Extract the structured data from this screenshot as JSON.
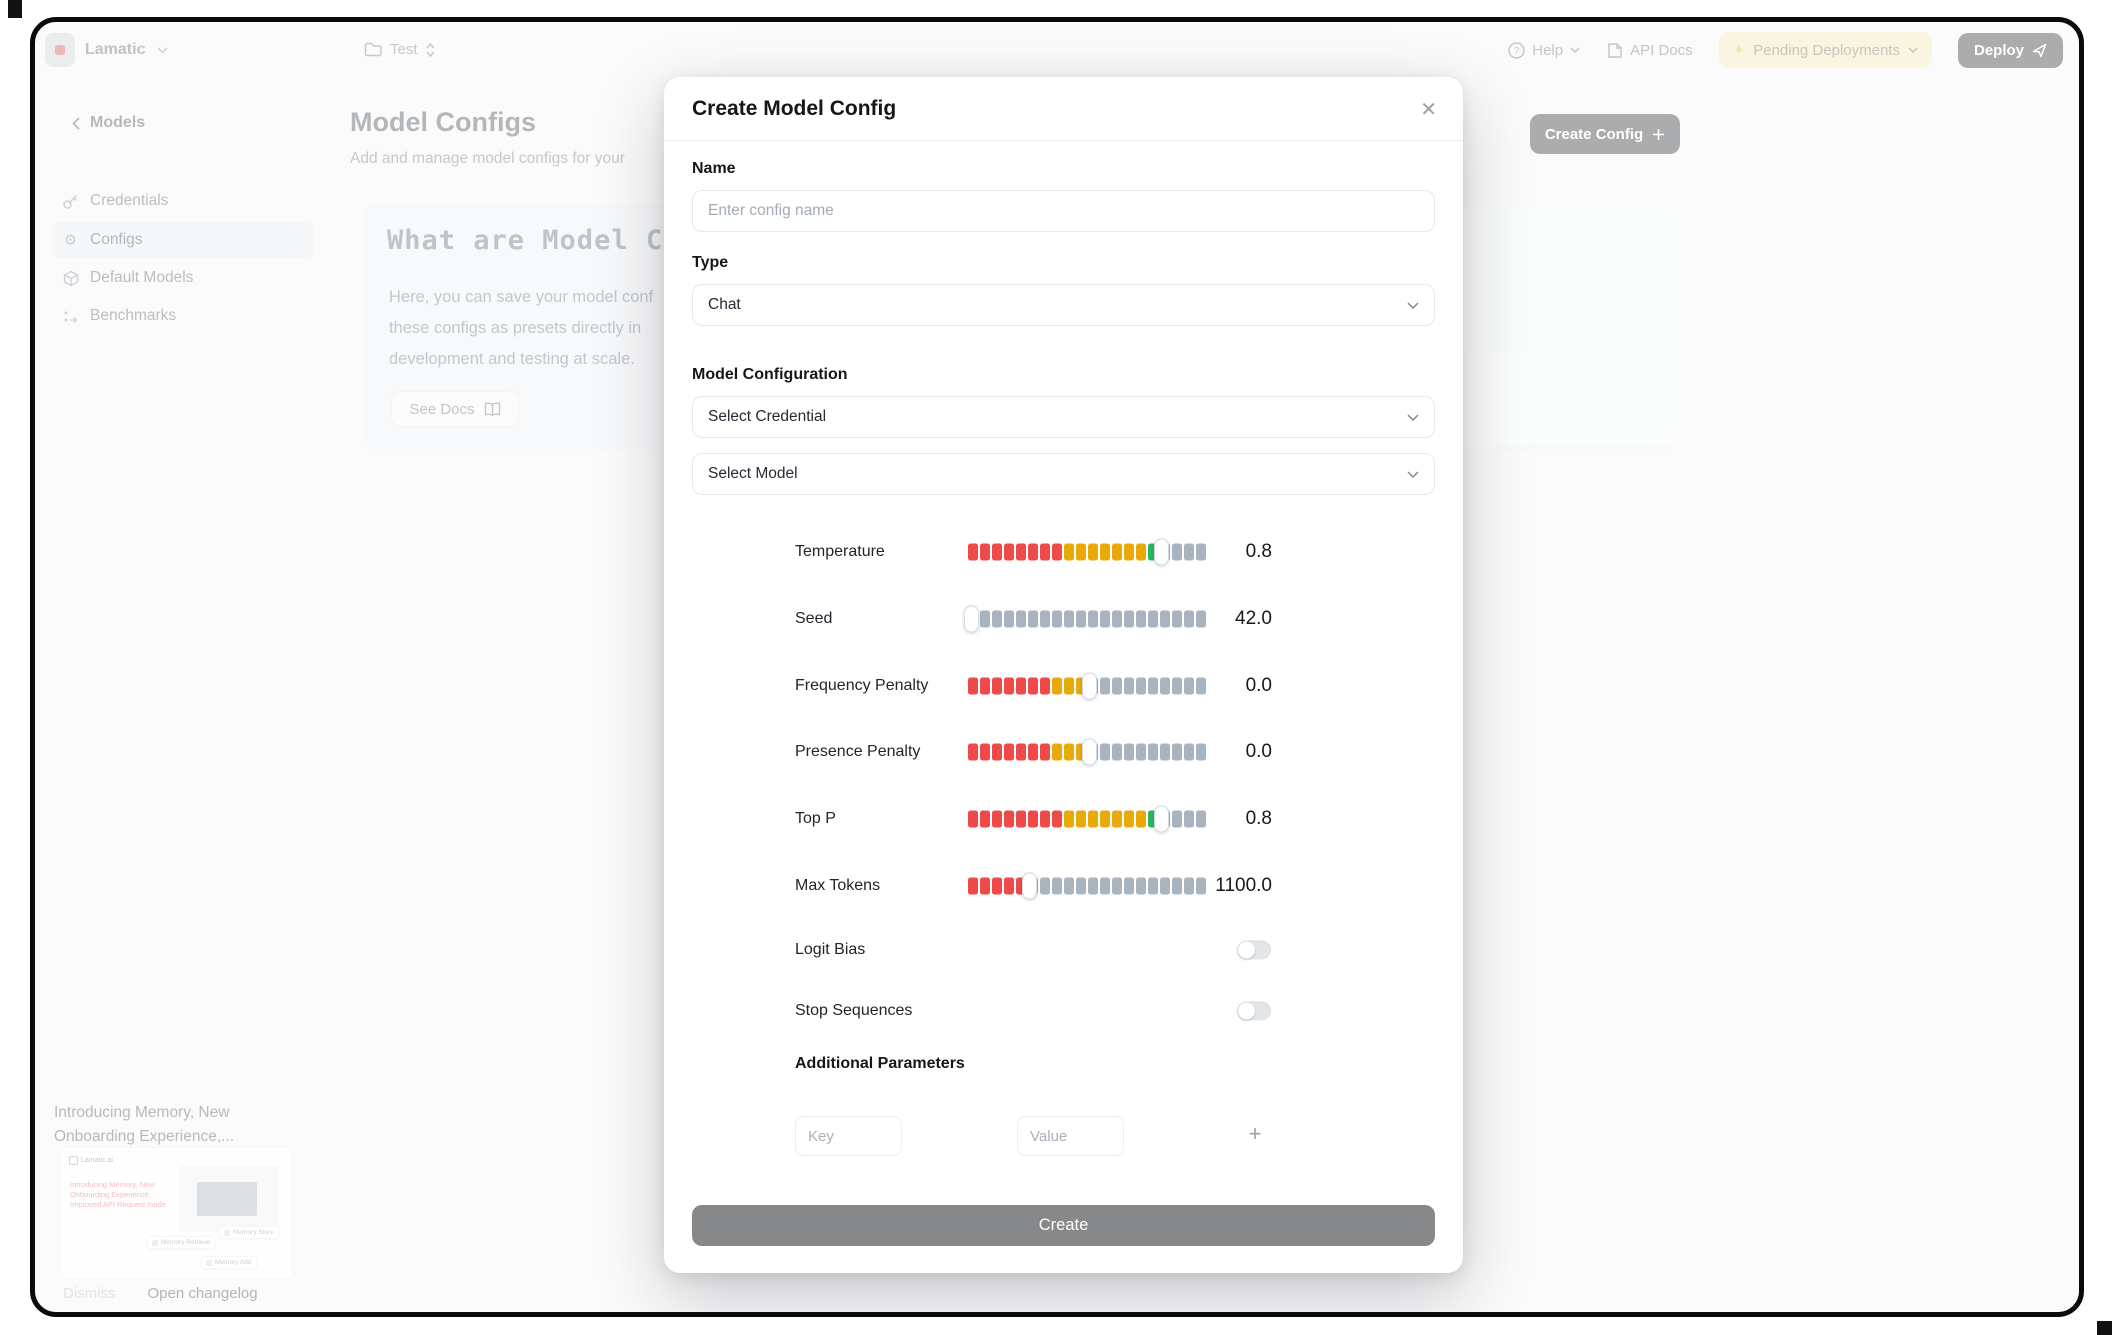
{
  "topbar": {
    "brand": "Lamatic",
    "project": "Test",
    "help_label": "Help",
    "api_docs_label": "API Docs",
    "pending_label": "Pending Deployments",
    "deploy_label": "Deploy"
  },
  "sidebar": {
    "back_label": "Models",
    "items": [
      {
        "label": "Credentials",
        "icon": "key-icon",
        "active": false
      },
      {
        "label": "Configs",
        "icon": "gear-icon",
        "active": true
      },
      {
        "label": "Default Models",
        "icon": "cube-icon",
        "active": false
      },
      {
        "label": "Benchmarks",
        "icon": "benchmark-icon",
        "active": false
      }
    ]
  },
  "main": {
    "title": "Model Configs",
    "subtitle": "Add and manage model configs for your",
    "create_config_label": "Create Config",
    "card": {
      "title": "What are Model Conf",
      "body_lines": [
        "Here, you can save your model conf",
        "these configs as presets directly in",
        "development and testing at scale."
      ],
      "see_docs_label": "See Docs"
    }
  },
  "changelog": {
    "title_line1": "Introducing Memory, New",
    "title_line2": "Onboarding Experience,...",
    "thumb_brand": "Lamatic.ai",
    "thumb_text": "Introducing Memory, New Onboarding Experience, Improved API Request /node",
    "thumb_cards": [
      "Memory Retrieve",
      "Memory Store",
      "Memory Add"
    ],
    "dismiss_label": "Dismiss",
    "open_label": "Open changelog"
  },
  "modal": {
    "title": "Create Model Config",
    "name_label": "Name",
    "name_placeholder": "Enter config name",
    "type_label": "Type",
    "type_value": "Chat",
    "model_config_label": "Model Configuration",
    "credential_value": "Select Credential",
    "model_value": "Select Model",
    "sliders": [
      {
        "label": "Temperature",
        "value": "0.8",
        "segments": [
          [
            "red",
            8
          ],
          [
            "amber",
            7
          ],
          [
            "green",
            1
          ],
          [
            "gray",
            4
          ]
        ],
        "thumb_after": 16
      },
      {
        "label": "Seed",
        "value": "42.0",
        "segments": [
          [
            "gray",
            20
          ]
        ],
        "thumb_after": 0
      },
      {
        "label": "Frequency Penalty",
        "value": "0.0",
        "segments": [
          [
            "red",
            7
          ],
          [
            "amber",
            3
          ],
          [
            "gray",
            10
          ]
        ],
        "thumb_after": 10
      },
      {
        "label": "Presence Penalty",
        "value": "0.0",
        "segments": [
          [
            "red",
            7
          ],
          [
            "amber",
            3
          ],
          [
            "gray",
            10
          ]
        ],
        "thumb_after": 10
      },
      {
        "label": "Top P",
        "value": "0.8",
        "segments": [
          [
            "red",
            8
          ],
          [
            "amber",
            7
          ],
          [
            "green",
            1
          ],
          [
            "gray",
            4
          ]
        ],
        "thumb_after": 16
      },
      {
        "label": "Max Tokens",
        "value": "1100.0",
        "segments": [
          [
            "red",
            5
          ],
          [
            "gray",
            15
          ]
        ],
        "thumb_after": 5
      }
    ],
    "toggles": [
      {
        "label": "Logit Bias",
        "on": false
      },
      {
        "label": "Stop Sequences",
        "on": false
      }
    ],
    "additional_label": "Additional Parameters",
    "key_placeholder": "Key",
    "value_placeholder": "Value",
    "create_label": "Create"
  },
  "colors": {
    "segment": {
      "red": "#ef4a4a",
      "amber": "#e9a908",
      "green": "#27b85f",
      "gray": "#a9b4c1"
    },
    "accent_dark": "#232529",
    "pending_bg": "#efe5b0"
  }
}
